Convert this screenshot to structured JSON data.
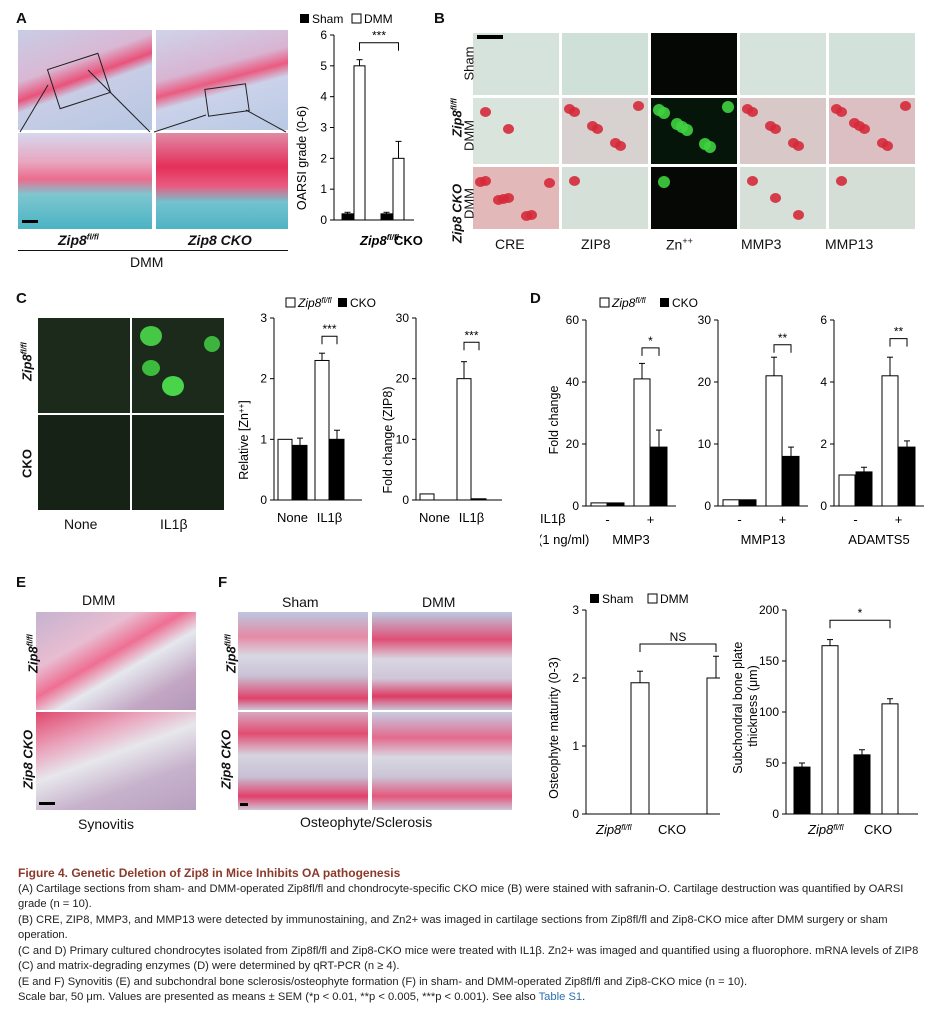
{
  "panels": {
    "A": {
      "label": "A",
      "img_left_label": "Zip8",
      "img_left_sup": "fl/fl",
      "img_right_label": "Zip8 CKO",
      "bottom_label": "DMM",
      "legend": [
        "Sham",
        "DMM"
      ],
      "xticks": [
        "Zip8fl/fl",
        "CKO"
      ]
    },
    "B": {
      "label": "B",
      "row_group_top": "Zip8fl/fl",
      "row_group_bottom": "Zip8 CKO",
      "rows": [
        "Sham",
        "DMM",
        "DMM"
      ],
      "cols": [
        "CRE",
        "ZIP8",
        "Zn++",
        "MMP3",
        "MMP13"
      ]
    },
    "C": {
      "label": "C",
      "row_labels": [
        "Zip8fl/fl",
        "CKO"
      ],
      "col_labels": [
        "None",
        "IL1β"
      ],
      "legend": [
        "Zip8fl/fl",
        "CKO"
      ]
    },
    "D": {
      "label": "D",
      "legend": [
        "Zip8fl/fl",
        "CKO"
      ],
      "il1b_row": "IL1β",
      "dose": "(1 ng/ml)",
      "minus": "-",
      "plus": "+"
    },
    "E": {
      "label": "E",
      "title": "DMM",
      "rows": [
        "Zip8fl/fl",
        "Zip8 CKO"
      ],
      "bottom": "Synovitis"
    },
    "F": {
      "label": "F",
      "cols": [
        "Sham",
        "DMM"
      ],
      "rows": [
        "Zip8fl/fl",
        "Zip8 CKO"
      ],
      "bottom": "Osteophyte/Sclerosis",
      "legend": [
        "Sham",
        "DMM"
      ],
      "xticks": [
        "Zip8fl/fl",
        "CKO"
      ]
    }
  },
  "chart_data": [
    {
      "type": "bar",
      "panel": "A",
      "ylabel": "OARSI grade (0-6)",
      "ylim": [
        0,
        6
      ],
      "categories": [
        "Zip8fl/fl",
        "CKO"
      ],
      "series": [
        {
          "name": "Sham",
          "values": [
            0.2,
            0.2
          ]
        },
        {
          "name": "DMM",
          "values": [
            5.0,
            2.0
          ]
        }
      ],
      "annotations": [
        "***"
      ]
    },
    {
      "type": "bar",
      "panel": "C",
      "ylabel": "Relative [Zn++]",
      "ylim": [
        0,
        3
      ],
      "categories": [
        "None",
        "IL1β"
      ],
      "series": [
        {
          "name": "Zip8fl/fl",
          "values": [
            1.0,
            2.3
          ]
        },
        {
          "name": "CKO",
          "values": [
            0.9,
            1.0
          ]
        }
      ],
      "annotations": [
        "***"
      ]
    },
    {
      "type": "bar",
      "panel": "C",
      "ylabel": "Fold change (ZIP8)",
      "ylim": [
        0,
        30
      ],
      "categories": [
        "None",
        "IL1β"
      ],
      "series": [
        {
          "name": "Zip8fl/fl",
          "values": [
            1,
            20
          ]
        },
        {
          "name": "CKO",
          "values": [
            0,
            0.2
          ]
        }
      ],
      "annotations": [
        "***"
      ]
    },
    {
      "type": "bar",
      "panel": "D",
      "ylabel": "Fold change",
      "xlabel": "MMP3",
      "ylim": [
        0,
        60
      ],
      "categories": [
        "-",
        "+"
      ],
      "series": [
        {
          "name": "Zip8fl/fl",
          "values": [
            1,
            41
          ]
        },
        {
          "name": "CKO",
          "values": [
            1,
            19
          ]
        }
      ],
      "annotations": [
        "*"
      ]
    },
    {
      "type": "bar",
      "panel": "D",
      "xlabel": "MMP13",
      "ylim": [
        0,
        30
      ],
      "categories": [
        "-",
        "+"
      ],
      "series": [
        {
          "name": "Zip8fl/fl",
          "values": [
            1,
            21
          ]
        },
        {
          "name": "CKO",
          "values": [
            1,
            8
          ]
        }
      ],
      "annotations": [
        "**"
      ]
    },
    {
      "type": "bar",
      "panel": "D",
      "xlabel": "ADAMTS5",
      "ylim": [
        0,
        6
      ],
      "categories": [
        "-",
        "+"
      ],
      "series": [
        {
          "name": "Zip8fl/fl",
          "values": [
            1,
            4.2
          ]
        },
        {
          "name": "CKO",
          "values": [
            1.1,
            1.9
          ]
        }
      ],
      "annotations": [
        "**"
      ]
    },
    {
      "type": "bar",
      "panel": "F",
      "ylabel": "Osteophyte maturity (0-3)",
      "ylim": [
        0,
        3
      ],
      "categories": [
        "Zip8fl/fl",
        "CKO"
      ],
      "series": [
        {
          "name": "Sham",
          "values": [
            0,
            0
          ]
        },
        {
          "name": "DMM",
          "values": [
            1.93,
            2.0
          ]
        }
      ],
      "annotations": [
        "NS"
      ]
    },
    {
      "type": "bar",
      "panel": "F",
      "ylabel": "Subchondral bone plate thickness (μm)",
      "ylim": [
        0,
        200
      ],
      "categories": [
        "Zip8fl/fl",
        "CKO"
      ],
      "series": [
        {
          "name": "Sham",
          "values": [
            46,
            58
          ]
        },
        {
          "name": "DMM",
          "values": [
            165,
            108
          ]
        }
      ],
      "annotations": [
        "*"
      ]
    }
  ],
  "caption": {
    "title": "Figure 4.  Genetic Deletion of Zip8 in Mice Inhibits OA pathogenesis",
    "lines": [
      "(A) Cartilage sections from sham- and DMM-operated Zip8fl/fl and chondrocyte-specific CKO mice (B) were stained with safranin-O. Cartilage destruction was quantified by OARSI grade (n = 10).",
      "(B) CRE, ZIP8, MMP3, and MMP13 were detected by immunostaining, and Zn2+ was imaged in cartilage sections from Zip8fl/fl and Zip8-CKO mice after DMM surgery or sham operation.",
      "(C and D) Primary cultured chondrocytes isolated from Zip8fl/fl and Zip8-CKO mice were treated with IL1β. Zn2+ was imaged and quantified using a fluorophore. mRNA levels of ZIP8 (C) and matrix-degrading enzymes (D) were determined by qRT-PCR (n ≥ 4).",
      "(E and F) Synovitis (E) and subchondral bone sclerosis/osteophyte formation (F) in sham- and DMM-operated Zip8fl/fl and Zip8-CKO mice (n = 10).",
      "Scale bar, 50 μm. Values are presented as means ± SEM (*p < 0.01, **p < 0.005, ***p < 0.001). See also"
    ],
    "link": "Table S1",
    "end": "."
  }
}
